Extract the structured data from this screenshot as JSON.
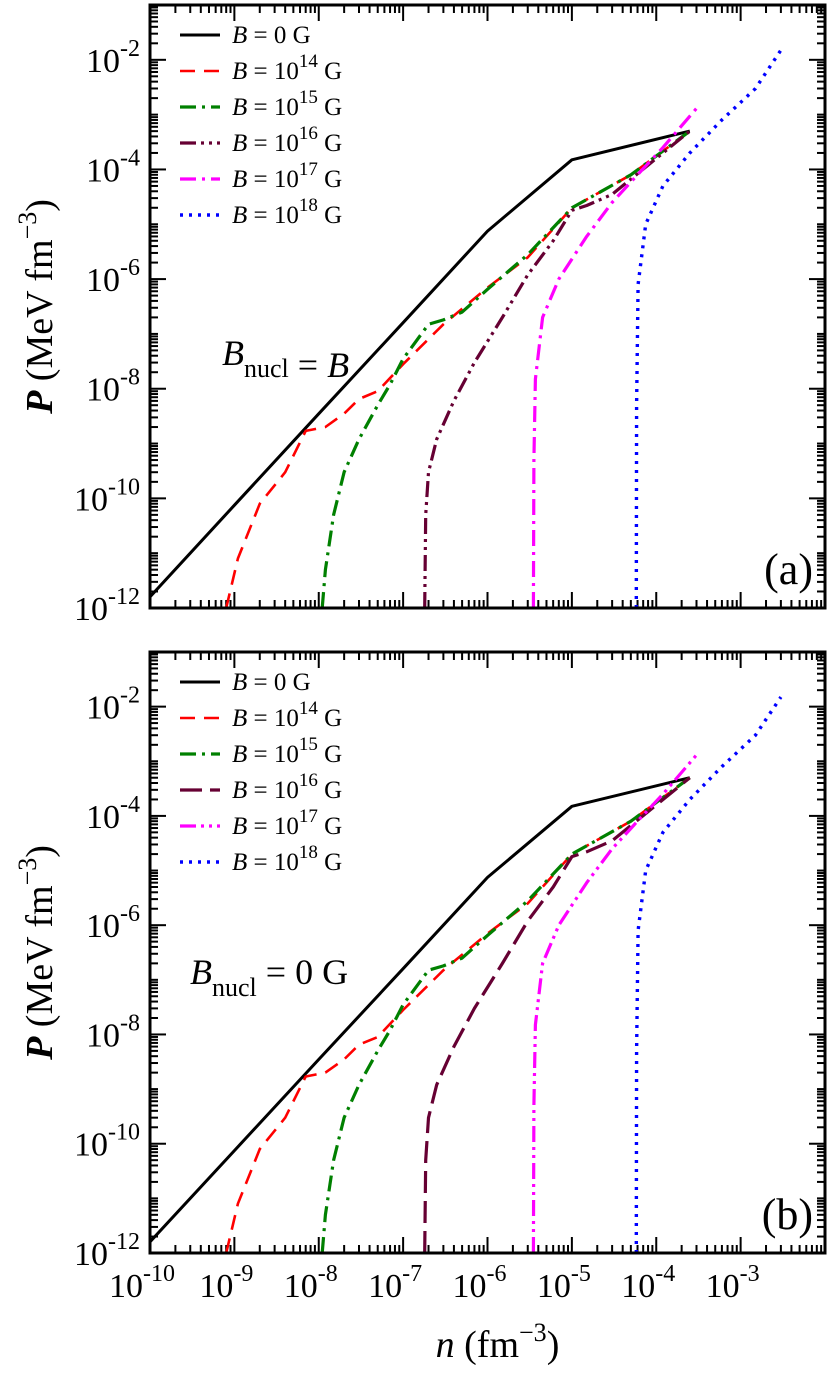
{
  "chart_data": [
    {
      "type": "line",
      "panel_label": "(a)",
      "annotation": {
        "prefix": "B",
        "sub": "nucl",
        "suffix": " = B"
      },
      "xscale": "log",
      "yscale": "log",
      "xlim": [
        1e-10,
        0.01
      ],
      "ylim": [
        1e-12,
        0.1
      ],
      "ylabel": {
        "var": "P",
        "text": " (MeV fm",
        "exp": "−3",
        "close": ")"
      },
      "yticks": [
        {
          "mant": "10",
          "exp": "-12"
        },
        {
          "mant": "10",
          "exp": "-10"
        },
        {
          "mant": "10",
          "exp": "-8"
        },
        {
          "mant": "10",
          "exp": "-6"
        },
        {
          "mant": "10",
          "exp": "-4"
        },
        {
          "mant": "10",
          "exp": "-2"
        }
      ],
      "legend_position": "top-left",
      "series": [
        {
          "name": "B = 0 G",
          "legend": {
            "pre": "B",
            "mid": " = 0 G",
            "exp": "",
            "post": ""
          },
          "color": "#000000",
          "dash": "solid",
          "x": [
            1e-10,
            1e-09,
            1e-08,
            1e-07,
            1e-06,
            1e-05,
            0.00025
          ],
          "y": [
            1.6e-12,
            7.5e-11,
            3.5e-09,
            1.6e-07,
            7.5e-06,
            0.00015,
            0.0005
          ]
        },
        {
          "name": "B = 10^14 G",
          "legend": {
            "pre": "B",
            "mid": " = 10",
            "exp": "14",
            "post": " G"
          },
          "color": "#ff0000",
          "dash": "dashed",
          "x": [
            8e-10,
            1.1e-09,
            2e-09,
            4e-09,
            7e-09,
            1.2e-08,
            2e-08,
            3e-08,
            5e-08,
            1e-07,
            3e-07,
            1e-06,
            3e-06,
            1e-05,
            5e-05,
            0.00025
          ],
          "y": [
            1e-12,
            8e-12,
            8e-11,
            3e-10,
            1.7e-09,
            2e-09,
            3.5e-09,
            6.5e-09,
            9e-09,
            2.8e-08,
            1.5e-07,
            7e-07,
            2.5e-06,
            2e-05,
            8e-05,
            0.0005
          ]
        },
        {
          "name": "B = 10^15 G",
          "legend": {
            "pre": "B",
            "mid": " = 10",
            "exp": "15",
            "post": " G"
          },
          "color": "#008000",
          "dash": "dashdot",
          "x": [
            1.1e-08,
            1.2e-08,
            1.5e-08,
            2e-08,
            3e-08,
            5e-08,
            7e-08,
            1e-07,
            2e-07,
            3e-07,
            5e-07,
            1e-06,
            3e-06,
            1e-05,
            5e-05,
            0.00025
          ],
          "y": [
            1e-12,
            5e-12,
            5e-11,
            3e-10,
            1.2e-09,
            5e-09,
            1.2e-08,
            3.5e-08,
            1.5e-07,
            1.8e-07,
            2.5e-07,
            6.5e-07,
            2.8e-06,
            2e-05,
            8e-05,
            0.0005
          ]
        },
        {
          "name": "B = 10^16 G",
          "legend": {
            "pre": "B",
            "mid": " = 10",
            "exp": "16",
            "post": " G"
          },
          "color": "#660033",
          "dash": "dashdotdot",
          "x": [
            1.8e-07,
            1.85e-07,
            2e-07,
            2.5e-07,
            4e-07,
            7e-07,
            1.5e-06,
            3e-06,
            6e-06,
            1e-05,
            1.5e-05,
            3e-05,
            8e-05,
            0.00025
          ],
          "y": [
            1e-12,
            5e-11,
            3e-10,
            1.2e-09,
            6e-09,
            3e-08,
            2e-07,
            1.2e-06,
            5e-06,
            1.8e-05,
            2.2e-05,
            3.5e-05,
            0.00012,
            0.0005
          ]
        },
        {
          "name": "B = 10^17 G",
          "legend": {
            "pre": "B",
            "mid": " = 10",
            "exp": "17",
            "post": " G"
          },
          "color": "#ff00ff",
          "dash": "dashdot",
          "x": [
            3.5e-06,
            3.55e-06,
            3.7e-06,
            4.5e-06,
            7e-06,
            1.5e-05,
            3e-05,
            6e-05,
            0.00012,
            0.0003
          ],
          "y": [
            1e-12,
            5e-10,
            1.5e-08,
            2e-07,
            1e-06,
            6e-06,
            2.5e-05,
            8e-05,
            0.00025,
            0.0013
          ]
        },
        {
          "name": "B = 10^18 G",
          "legend": {
            "pre": "B",
            "mid": " = 10",
            "exp": "18",
            "post": " G"
          },
          "color": "#0000ff",
          "dash": "dotted",
          "x": [
            5.8e-05,
            5.85e-05,
            6.1e-05,
            7.5e-05,
            0.00012,
            0.00025,
            0.0006,
            0.0015,
            0.003
          ],
          "y": [
            1e-12,
            5e-09,
            8e-07,
            1e-05,
            5e-05,
            0.0002,
            0.0008,
            0.003,
            0.015
          ]
        }
      ]
    },
    {
      "type": "line",
      "panel_label": "(b)",
      "annotation": {
        "prefix": "B",
        "sub": "nucl",
        "suffix": " = 0 G"
      },
      "xscale": "log",
      "yscale": "log",
      "xlim": [
        1e-10,
        0.01
      ],
      "ylim": [
        1e-12,
        0.1
      ],
      "xlabel": {
        "var": "n",
        "text": " (fm",
        "exp": "−3",
        "close": ")"
      },
      "ylabel": {
        "var": "P",
        "text": " (MeV fm",
        "exp": "−3",
        "close": ")"
      },
      "xticks": [
        {
          "mant": "10",
          "exp": "-10"
        },
        {
          "mant": "10",
          "exp": "-9"
        },
        {
          "mant": "10",
          "exp": "-8"
        },
        {
          "mant": "10",
          "exp": "-7"
        },
        {
          "mant": "10",
          "exp": "-6"
        },
        {
          "mant": "10",
          "exp": "-5"
        },
        {
          "mant": "10",
          "exp": "-4"
        },
        {
          "mant": "10",
          "exp": "-3"
        }
      ],
      "yticks": [
        {
          "mant": "10",
          "exp": "-12"
        },
        {
          "mant": "10",
          "exp": "-10"
        },
        {
          "mant": "10",
          "exp": "-8"
        },
        {
          "mant": "10",
          "exp": "-6"
        },
        {
          "mant": "10",
          "exp": "-4"
        },
        {
          "mant": "10",
          "exp": "-2"
        }
      ],
      "legend_position": "top-left",
      "series": [
        {
          "name": "B = 0 G",
          "legend": {
            "pre": "B",
            "mid": " = 0 G",
            "exp": "",
            "post": ""
          },
          "color": "#000000",
          "dash": "solid",
          "x": [
            1e-10,
            1e-09,
            1e-08,
            1e-07,
            1e-06,
            1e-05,
            0.00025
          ],
          "y": [
            1.6e-12,
            7.5e-11,
            3.5e-09,
            1.6e-07,
            7.5e-06,
            0.00015,
            0.0005
          ]
        },
        {
          "name": "B = 10^14 G",
          "legend": {
            "pre": "B",
            "mid": " = 10",
            "exp": "14",
            "post": " G"
          },
          "color": "#ff0000",
          "dash": "dashed",
          "x": [
            8e-10,
            1.1e-09,
            2e-09,
            4e-09,
            7e-09,
            1.2e-08,
            2e-08,
            3e-08,
            5e-08,
            1e-07,
            3e-07,
            1e-06,
            3e-06,
            1e-05,
            5e-05,
            0.00025
          ],
          "y": [
            1e-12,
            8e-12,
            8e-11,
            3e-10,
            1.7e-09,
            2e-09,
            3.5e-09,
            6.5e-09,
            9e-09,
            2.8e-08,
            1.5e-07,
            7e-07,
            2.5e-06,
            2e-05,
            8e-05,
            0.0005
          ]
        },
        {
          "name": "B = 10^15 G",
          "legend": {
            "pre": "B",
            "mid": " = 10",
            "exp": "15",
            "post": " G"
          },
          "color": "#008000",
          "dash": "dashdot",
          "x": [
            1.1e-08,
            1.2e-08,
            1.5e-08,
            2e-08,
            3e-08,
            5e-08,
            7e-08,
            1e-07,
            2e-07,
            3e-07,
            5e-07,
            1e-06,
            3e-06,
            1e-05,
            5e-05,
            0.00025
          ],
          "y": [
            1e-12,
            5e-12,
            5e-11,
            3e-10,
            1.2e-09,
            5e-09,
            1.2e-08,
            3.5e-08,
            1.5e-07,
            1.8e-07,
            2.5e-07,
            6.5e-07,
            2.8e-06,
            2e-05,
            8e-05,
            0.0005
          ]
        },
        {
          "name": "B = 10^16 G",
          "legend": {
            "pre": "B",
            "mid": " = 10",
            "exp": "16",
            "post": " G"
          },
          "color": "#660033",
          "dash": "longdash",
          "x": [
            1.8e-07,
            1.85e-07,
            2e-07,
            2.5e-07,
            4e-07,
            7e-07,
            1.5e-06,
            3e-06,
            6e-06,
            1e-05,
            1.5e-05,
            3e-05,
            8e-05,
            0.00025
          ],
          "y": [
            1e-12,
            5e-11,
            3e-10,
            1.2e-09,
            6e-09,
            3e-08,
            2e-07,
            1.2e-06,
            5e-06,
            1.8e-05,
            2.2e-05,
            3.5e-05,
            0.00012,
            0.0005
          ]
        },
        {
          "name": "B = 10^17 G",
          "legend": {
            "pre": "B",
            "mid": " = 10",
            "exp": "17",
            "post": " G"
          },
          "color": "#ff00ff",
          "dash": "dashdotdot",
          "x": [
            3.5e-06,
            3.55e-06,
            3.7e-06,
            4.5e-06,
            7e-06,
            1.5e-05,
            3e-05,
            6e-05,
            0.00012,
            0.0003
          ],
          "y": [
            1e-12,
            5e-10,
            1.5e-08,
            2e-07,
            1e-06,
            6e-06,
            2.5e-05,
            8e-05,
            0.00025,
            0.0013
          ]
        },
        {
          "name": "B = 10^18 G",
          "legend": {
            "pre": "B",
            "mid": " = 10",
            "exp": "18",
            "post": " G"
          },
          "color": "#0000ff",
          "dash": "dotted",
          "x": [
            5.8e-05,
            5.85e-05,
            6.1e-05,
            7.5e-05,
            0.00012,
            0.00025,
            0.0006,
            0.0015,
            0.003
          ],
          "y": [
            1e-12,
            5e-09,
            8e-07,
            1e-05,
            5e-05,
            0.0002,
            0.0008,
            0.003,
            0.015
          ]
        }
      ]
    }
  ]
}
